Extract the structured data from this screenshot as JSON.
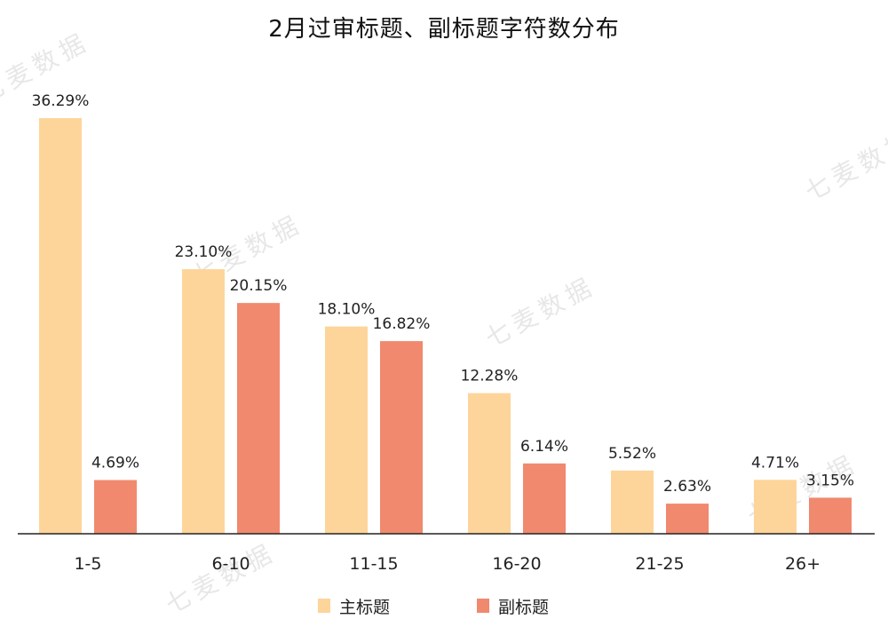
{
  "chart_data": {
    "type": "bar",
    "title": "2月过审标题、副标题字符数分布",
    "categories": [
      "1-5",
      "6-10",
      "11-15",
      "16-20",
      "21-25",
      "26+"
    ],
    "series": [
      {
        "name": "主标题",
        "values": [
          36.29,
          23.1,
          18.1,
          12.28,
          5.52,
          4.71
        ],
        "labels": [
          "36.29%",
          "23.10%",
          "18.10%",
          "12.28%",
          "5.52%",
          "4.71%"
        ],
        "color": "#FDD59A"
      },
      {
        "name": "副标题",
        "values": [
          4.69,
          20.15,
          16.82,
          6.14,
          2.63,
          3.15
        ],
        "labels": [
          "4.69%",
          "20.15%",
          "16.82%",
          "6.14%",
          "2.63%",
          "3.15%"
        ],
        "color": "#F0896E"
      }
    ],
    "ylim": [
      0,
      36.29
    ],
    "grid": false,
    "legend_position": "bottom"
  },
  "watermark": "七麦数据"
}
